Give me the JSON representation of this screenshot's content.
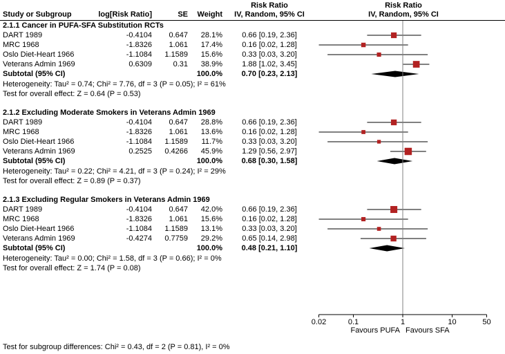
{
  "header": {
    "risk_ratio": "Risk Ratio",
    "col_study": "Study or Subgroup",
    "col_logrr": "log[Risk Ratio]",
    "col_se": "SE",
    "col_weight": "Weight",
    "col_ci": "IV, Random, 95% CI"
  },
  "chart_data": {
    "type": "forest",
    "effect_measure": "Risk Ratio",
    "model": "IV, Random, 95% CI",
    "axis": {
      "scale": "log",
      "min": 0.02,
      "max": 50,
      "ticks": [
        0.02,
        0.1,
        1,
        10,
        50
      ]
    },
    "favours_left": "Favours PUFA",
    "favours_right": "Favours SFA",
    "marker_color": "#b22222",
    "null_value": 1,
    "groups": [
      {
        "title": "2.1.1 Cancer in PUFA-SFA Substitution RCTs",
        "studies": [
          {
            "name": "DART 1989",
            "log_rr": "-0.4104",
            "se": "0.647",
            "weight": "28.1%",
            "weight_value": 28.1,
            "ci_text": "0.66 [0.19, 2.36]",
            "estimate": 0.66,
            "lower": 0.19,
            "upper": 2.36
          },
          {
            "name": "MRC 1968",
            "log_rr": "-1.8326",
            "se": "1.061",
            "weight": "17.4%",
            "weight_value": 17.4,
            "ci_text": "0.16 [0.02, 1.28]",
            "estimate": 0.16,
            "lower": 0.02,
            "upper": 1.28
          },
          {
            "name": "Oslo Diet-Heart 1966",
            "log_rr": "-1.1084",
            "se": "1.1589",
            "weight": "15.6%",
            "weight_value": 15.6,
            "ci_text": "0.33 [0.03, 3.20]",
            "estimate": 0.33,
            "lower": 0.03,
            "upper": 3.2
          },
          {
            "name": "Veterans Admin 1969",
            "log_rr": "0.6309",
            "se": "0.31",
            "weight": "38.9%",
            "weight_value": 38.9,
            "ci_text": "1.88 [1.02, 3.45]",
            "estimate": 1.88,
            "lower": 1.02,
            "upper": 3.45
          }
        ],
        "subtotal": {
          "label": "Subtotal (95% CI)",
          "weight": "100.0%",
          "ci_text": "0.70 [0.23, 2.13]",
          "estimate": 0.7,
          "lower": 0.23,
          "upper": 2.13
        },
        "heterogeneity": "Heterogeneity: Tau² = 0.74; Chi² = 7.76, df = 3 (P = 0.05); I² = 61%",
        "overall_effect": "Test for overall effect: Z = 0.64 (P = 0.53)"
      },
      {
        "title": "2.1.2 Excluding Moderate Smokers in Veterans Admin 1969",
        "studies": [
          {
            "name": "DART 1989",
            "log_rr": "-0.4104",
            "se": "0.647",
            "weight": "28.8%",
            "weight_value": 28.8,
            "ci_text": "0.66 [0.19, 2.36]",
            "estimate": 0.66,
            "lower": 0.19,
            "upper": 2.36
          },
          {
            "name": "MRC 1968",
            "log_rr": "-1.8326",
            "se": "1.061",
            "weight": "13.6%",
            "weight_value": 13.6,
            "ci_text": "0.16 [0.02, 1.28]",
            "estimate": 0.16,
            "lower": 0.02,
            "upper": 1.28
          },
          {
            "name": "Oslo Diet-Heart 1966",
            "log_rr": "-1.1084",
            "se": "1.1589",
            "weight": "11.7%",
            "weight_value": 11.7,
            "ci_text": "0.33 [0.03, 3.20]",
            "estimate": 0.33,
            "lower": 0.03,
            "upper": 3.2
          },
          {
            "name": "Veterans Admin 1969",
            "log_rr": "0.2525",
            "se": "0.4266",
            "weight": "45.9%",
            "weight_value": 45.9,
            "ci_text": "1.29 [0.56, 2.97]",
            "estimate": 1.29,
            "lower": 0.56,
            "upper": 2.97
          }
        ],
        "subtotal": {
          "label": "Subtotal (95% CI)",
          "weight": "100.0%",
          "ci_text": "0.68 [0.30, 1.58]",
          "estimate": 0.68,
          "lower": 0.3,
          "upper": 1.58
        },
        "heterogeneity": "Heterogeneity: Tau² = 0.22; Chi² = 4.21, df = 3 (P = 0.24); I² = 29%",
        "overall_effect": "Test for overall effect: Z = 0.89 (P = 0.37)"
      },
      {
        "title": "2.1.3 Excluding Regular Smokers in Veterans Admin 1969",
        "studies": [
          {
            "name": "DART 1989",
            "log_rr": "-0.4104",
            "se": "0.647",
            "weight": "42.0%",
            "weight_value": 42.0,
            "ci_text": "0.66 [0.19, 2.36]",
            "estimate": 0.66,
            "lower": 0.19,
            "upper": 2.36
          },
          {
            "name": "MRC 1968",
            "log_rr": "-1.8326",
            "se": "1.061",
            "weight": "15.6%",
            "weight_value": 15.6,
            "ci_text": "0.16 [0.02, 1.28]",
            "estimate": 0.16,
            "lower": 0.02,
            "upper": 1.28
          },
          {
            "name": "Oslo Diet-Heart 1966",
            "log_rr": "-1.1084",
            "se": "1.1589",
            "weight": "13.1%",
            "weight_value": 13.1,
            "ci_text": "0.33 [0.03, 3.20]",
            "estimate": 0.33,
            "lower": 0.03,
            "upper": 3.2
          },
          {
            "name": "Veterans Admin 1969",
            "log_rr": "-0.4274",
            "se": "0.7759",
            "weight": "29.2%",
            "weight_value": 29.2,
            "ci_text": "0.65 [0.14, 2.98]",
            "estimate": 0.65,
            "lower": 0.14,
            "upper": 2.98
          }
        ],
        "subtotal": {
          "label": "Subtotal (95% CI)",
          "weight": "100.0%",
          "ci_text": "0.48 [0.21, 1.10]",
          "estimate": 0.48,
          "lower": 0.21,
          "upper": 1.1
        },
        "heterogeneity": "Heterogeneity: Tau² = 0.00; Chi² = 1.58, df = 3 (P = 0.66); I² = 0%",
        "overall_effect": "Test for overall effect: Z = 1.74 (P = 0.08)"
      }
    ],
    "footer": "Test for subgroup differences: Chi² = 0.43, df = 2 (P = 0.81), I² = 0%"
  }
}
